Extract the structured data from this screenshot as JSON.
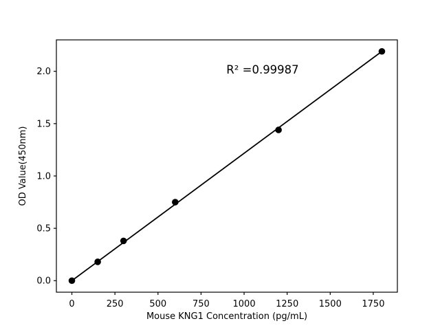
{
  "figure": {
    "background": "#ffffff",
    "foreground": "#000000"
  },
  "chart_data": {
    "type": "scatter",
    "title": "",
    "xlabel": "Mouse KNG1 Concentration (pg/mL)",
    "ylabel": "OD Value(450nm)",
    "annotation": "R² =0.99987",
    "x": [
      0,
      150,
      300,
      600,
      1200,
      1800
    ],
    "y": [
      0.0,
      0.18,
      0.38,
      0.75,
      1.44,
      2.19
    ],
    "fit_line": {
      "x1": 0,
      "y1": 0.0,
      "x2": 1800,
      "y2": 2.19
    },
    "xlim": [
      -90,
      1890
    ],
    "ylim": [
      -0.11,
      2.3
    ],
    "xticks": {
      "values": [
        0,
        250,
        500,
        750,
        1000,
        1250,
        1500,
        1750
      ],
      "labels": [
        "0",
        "250",
        "500",
        "750",
        "1000",
        "1250",
        "1500",
        "1750"
      ]
    },
    "yticks": {
      "values": [
        0.0,
        0.5,
        1.0,
        1.5,
        2.0
      ],
      "labels": [
        "0.0",
        "0.5",
        "1.0",
        "1.5",
        "2.0"
      ]
    },
    "grid": false,
    "legend": "none",
    "marker_color": "#000000",
    "line_color": "#000000"
  }
}
